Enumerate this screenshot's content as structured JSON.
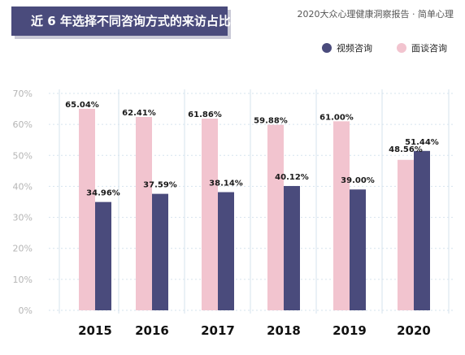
{
  "header": {
    "title": "近 6 年选择不同咨询方式的来访占比",
    "source": "2020大众心理健康洞察报告 · 简单心理"
  },
  "colors": {
    "video": "#4a4b7c",
    "in_person": "#f2c4cf",
    "banner": "#4a4b7c",
    "axis_text": "#b5b5b5",
    "grid": "#d6e3ee"
  },
  "chart_data": {
    "type": "bar",
    "title": "近 6 年选择不同咨询方式的来访占比",
    "categories": [
      "2015",
      "2016",
      "2017",
      "2018",
      "2019",
      "2020"
    ],
    "series": [
      {
        "name": "面谈咨询",
        "values": [
          65.04,
          62.41,
          61.86,
          59.88,
          61.0,
          48.56
        ],
        "labels": [
          "65.04%",
          "62.41%",
          "61.86%",
          "59.88%",
          "61.00%",
          "48.56%"
        ]
      },
      {
        "name": "视频咨询",
        "values": [
          34.96,
          37.59,
          38.14,
          40.12,
          39.0,
          51.44
        ],
        "labels": [
          "34.96%",
          "37.59%",
          "38.14%",
          "40.12%",
          "39.00%",
          "51.44%"
        ]
      }
    ],
    "yticks": [
      "0%",
      "10%",
      "20%",
      "30%",
      "40%",
      "50%",
      "60%",
      "70%"
    ],
    "ylim": [
      0,
      70
    ],
    "grid": true,
    "legend": "top-right"
  }
}
